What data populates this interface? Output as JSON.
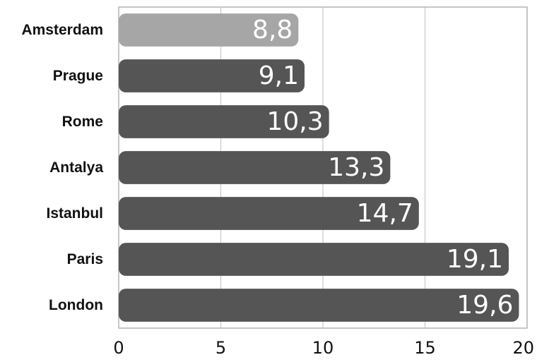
{
  "chart_data": {
    "type": "bar",
    "orientation": "horizontal",
    "categories": [
      "Amsterdam",
      "Prague",
      "Rome",
      "Antalya",
      "Istanbul",
      "Paris",
      "London"
    ],
    "values": [
      8.8,
      9.1,
      10.3,
      13.3,
      14.7,
      19.1,
      19.6
    ],
    "data_labels": [
      "8,8",
      "9,1",
      "10,3",
      "13,3",
      "14,7",
      "19,1",
      "19,6"
    ],
    "x_ticks": [
      0,
      5,
      10,
      15,
      20
    ],
    "x_tick_labels": [
      "0",
      "5",
      "10",
      "15",
      "20"
    ],
    "xlim": [
      0,
      20
    ],
    "title": "",
    "xlabel": "",
    "ylabel": "",
    "grid": "vertical",
    "legend": "none",
    "colors": {
      "bar": "#555555",
      "highlight_bar": "#a6a6a6",
      "grid": "#c8c8c8",
      "data_label": "#ffffff"
    },
    "highlight_category": "Amsterdam"
  }
}
